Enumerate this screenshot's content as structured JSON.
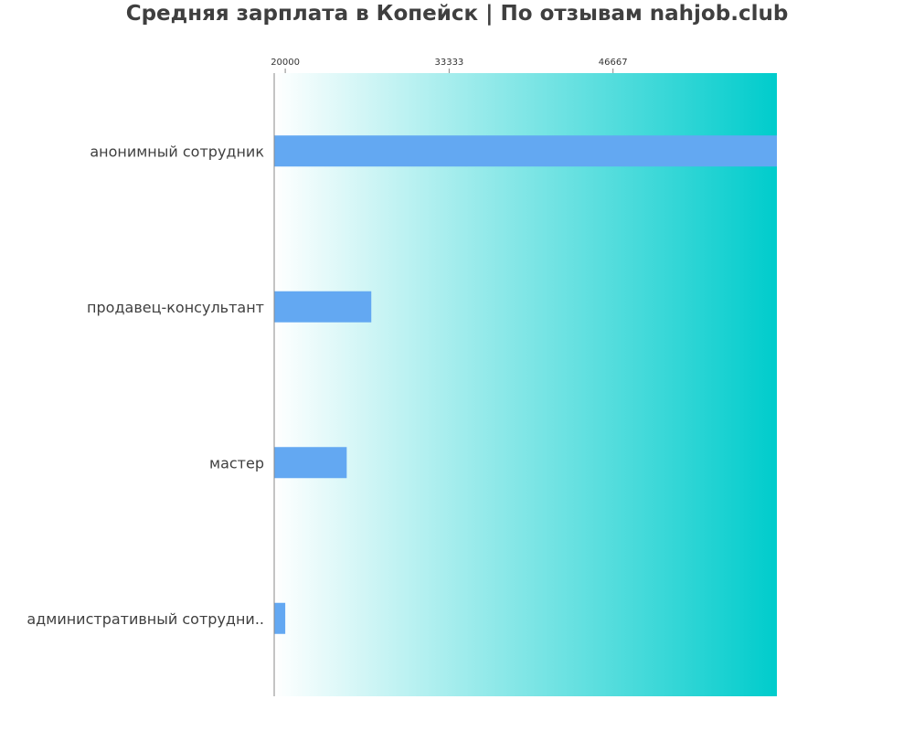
{
  "title": "Средняя зарплата в Копейск | По отзывам nahjob.club",
  "chart_data": {
    "type": "bar",
    "orientation": "horizontal",
    "title": "Средняя зарплата в Копейск | По отзывам nahjob.club",
    "xlabel": "",
    "ylabel": "",
    "categories": [
      "анонимный сотрудник",
      "продавец-консультант",
      "мастер",
      "административный сотрудни.."
    ],
    "values": [
      60000,
      27000,
      25000,
      20000
    ],
    "xlim": [
      19100,
      60000
    ],
    "xticks": [
      20000,
      33333,
      46667
    ],
    "xtick_labels": [
      "20000",
      "33333",
      "46667"
    ],
    "tick_position": "top",
    "grid": false,
    "legend": "none",
    "colors": {
      "bar": "#63a8f2",
      "background_start": "#ffffff",
      "background_end": "#00cccc",
      "axis": "#888888",
      "title": "#3f3f3f",
      "text": "#3f3f3f"
    }
  }
}
